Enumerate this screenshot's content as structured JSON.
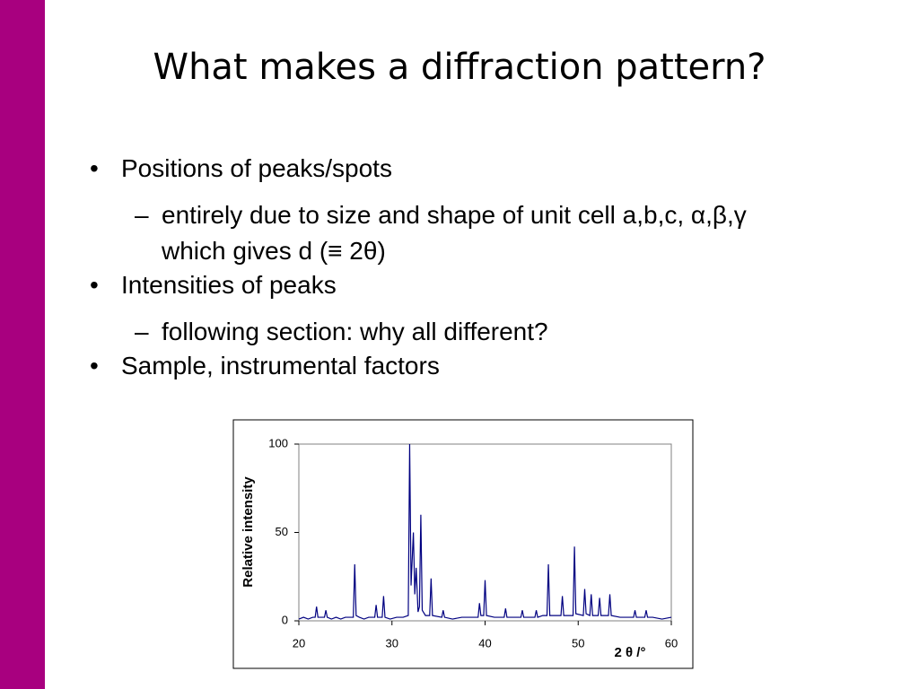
{
  "title": "What makes a diffraction pattern?",
  "bullets": [
    {
      "text": "Positions of peaks/spots",
      "sub": [
        "entirely due to size and shape of unit cell a,b,c, α,β,γ which gives d (≡ 2θ)"
      ]
    },
    {
      "text": "Intensities of peaks",
      "sub": [
        "following section: why all different?"
      ]
    },
    {
      "text": "Sample, instrumental factors",
      "sub": []
    }
  ],
  "chart_data": {
    "type": "line",
    "xlabel": "2 θ /°",
    "ylabel": "Relative intensity",
    "xlim": [
      20,
      60
    ],
    "ylim": [
      0,
      100
    ],
    "xticks": [
      20,
      30,
      40,
      50,
      60
    ],
    "yticks": [
      0,
      50,
      100
    ],
    "x": [
      20,
      20.5,
      21,
      21.5,
      21.75,
      21.9,
      22.05,
      22.5,
      22.75,
      22.9,
      23.05,
      23.5,
      24,
      24.5,
      25,
      25.85,
      26.0,
      26.15,
      26.5,
      27,
      27.5,
      28.15,
      28.3,
      28.45,
      28.95,
      29.1,
      29.25,
      29.8,
      30.5,
      31.2,
      31.75,
      31.9,
      32.05,
      32.3,
      32.45,
      32.6,
      32.8,
      32.95,
      33.1,
      33.25,
      33.6,
      34.05,
      34.2,
      34.35,
      35.35,
      35.5,
      35.65,
      36.5,
      37.5,
      38.5,
      39.25,
      39.4,
      39.55,
      39.85,
      40.0,
      40.15,
      41,
      42.05,
      42.2,
      42.35,
      43,
      43.85,
      44.0,
      44.15,
      45.35,
      45.5,
      45.65,
      46.2,
      46.65,
      46.8,
      46.95,
      47.5,
      48.15,
      48.3,
      48.45,
      49.0,
      49.45,
      49.6,
      49.75,
      50.55,
      50.7,
      50.85,
      51.25,
      51.4,
      51.55,
      52.15,
      52.3,
      52.45,
      53.25,
      53.4,
      53.55,
      54.5,
      55.3,
      55.95,
      56.1,
      56.25,
      57.15,
      57.3,
      57.45,
      58,
      59,
      60
    ],
    "series": [
      {
        "color": "#000080",
        "values": [
          1,
          2,
          1,
          2,
          2,
          8,
          2,
          2,
          2,
          6,
          2,
          1,
          2,
          1,
          2,
          2,
          32,
          3,
          2,
          1,
          2,
          2,
          9,
          2,
          2,
          14,
          2,
          1,
          2,
          2,
          3,
          100,
          20,
          50,
          15,
          30,
          5,
          8,
          60,
          6,
          3,
          3,
          24,
          3,
          2,
          6,
          2,
          1,
          2,
          2,
          2,
          10,
          3,
          3,
          23,
          3,
          2,
          2,
          7,
          2,
          2,
          2,
          6,
          2,
          2,
          6,
          2,
          3,
          3,
          32,
          3,
          3,
          3,
          14,
          3,
          3,
          3,
          42,
          4,
          3,
          18,
          4,
          3,
          15,
          3,
          3,
          13,
          3,
          3,
          15,
          3,
          2,
          2,
          2,
          6,
          2,
          2,
          6,
          2,
          2,
          1,
          2
        ]
      }
    ]
  }
}
